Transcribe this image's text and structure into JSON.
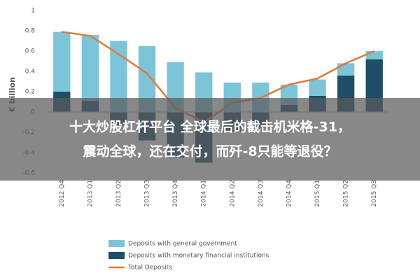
{
  "chart_data": {
    "type": "bar",
    "stacked": true,
    "y_label": "€ billion",
    "categories": [
      "2012 Q4",
      "2013 Q1",
      "2013 Q2",
      "2013 Q3",
      "2013 Q4",
      "2014 Q1",
      "2014 Q2",
      "2014 Q3",
      "2014 Q4",
      "2015 Q1",
      "2015 Q2",
      "2015 Q3"
    ],
    "series": [
      {
        "name": "Deposits with general government",
        "type": "bar",
        "color": "#7cc4d8",
        "values": [
          0.59,
          0.65,
          0.7,
          0.65,
          0.49,
          0.39,
          0.29,
          0.29,
          0.2,
          0.16,
          0.12,
          0.08
        ]
      },
      {
        "name": "Deposits with monetary financial institutions",
        "type": "bar",
        "color": "#1f4e66",
        "values": [
          0.2,
          0.11,
          -0.13,
          -0.28,
          -0.45,
          -0.5,
          -0.2,
          -0.15,
          0.07,
          0.16,
          0.36,
          0.52
        ]
      },
      {
        "name": "Total Deposits",
        "type": "line",
        "color": "#e07b39",
        "values": [
          0.79,
          0.75,
          0.57,
          0.38,
          0.04,
          -0.1,
          0.09,
          0.14,
          0.27,
          0.33,
          0.48,
          0.6
        ]
      }
    ],
    "ylim": [
      -0.6,
      1
    ],
    "yticks": [
      1,
      0.8,
      0.6,
      0.4,
      0.2,
      0,
      -0.2,
      -0.4,
      -0.6
    ],
    "grid": false
  },
  "banner": {
    "lines": [
      "十大炒股杠杆平台 全球最后的截击机米格-31，",
      "震动全球，还在交付，而歼-8只能等退役？"
    ]
  }
}
